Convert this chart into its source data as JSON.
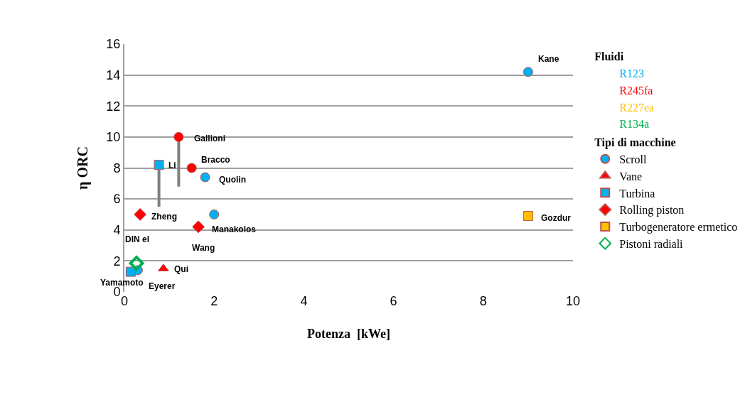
{
  "chart_data": {
    "type": "scatter",
    "xlabel": "Potenza  [kWe]",
    "ylabel": "η ORC",
    "legend_title": "Fluidi",
    "xlim": [
      0,
      10
    ],
    "xticks": [
      0,
      2,
      4,
      6,
      8,
      10
    ],
    "ylim": [
      0,
      16
    ],
    "yticks": [
      0,
      2,
      4,
      6,
      8,
      10,
      12,
      14,
      16
    ],
    "grid": "y",
    "legend": "right",
    "series": [
      {
        "name": "R123",
        "color": "#00b0f0"
      },
      {
        "name": "R245fa",
        "color": "#ff0000"
      },
      {
        "name": "R227ea",
        "color": "#ffc000"
      },
      {
        "name": "R134a",
        "color": "#00b050"
      },
      {
        "name": "Scroll",
        "marker": "circle",
        "x": [
          9.0,
          1.21,
          1.5,
          1.8,
          2.0,
          0.3
        ],
        "values": [
          14.2,
          10.0,
          8.0,
          7.4,
          5.0,
          1.4
        ],
        "colors": [
          "#00b0f0",
          "#ff0000",
          "#ff0000",
          "#00b0f0",
          "#00b0f0",
          "#00b0f0"
        ],
        "errors": [
          null,
          [
            6.8,
            10.0
          ],
          null,
          null,
          null,
          null
        ]
      },
      {
        "name": "Vane",
        "marker": "triangle",
        "x": [
          0.87
        ],
        "values": [
          1.5
        ],
        "colors": [
          "#ff0000"
        ]
      },
      {
        "name": "Turbina",
        "marker": "square",
        "x": [
          0.77,
          0.14
        ],
        "values": [
          8.2,
          1.3
        ],
        "colors": [
          "#00b0f0",
          "#00b0f0"
        ],
        "errors": [
          [
            5.5,
            8.2
          ],
          null
        ]
      },
      {
        "name": "Rolling piston",
        "marker": "diamond",
        "x": [
          0.35,
          1.65
        ],
        "values": [
          5.0,
          4.2
        ],
        "colors": [
          "#ff0000",
          "#ff0000"
        ]
      },
      {
        "name": "Turbogeneratore ermetico",
        "marker": "square",
        "x": [
          9.0
        ],
        "values": [
          4.9
        ],
        "colors": [
          "#ffc000"
        ]
      },
      {
        "name": "Pistoni radiali",
        "marker": "diamond-open",
        "x": [
          0.27
        ],
        "values": [
          1.85
        ],
        "colors": [
          "#00b050"
        ]
      }
    ],
    "annotations": [
      "Tipi di macchine",
      {
        "text": "Kane",
        "x": 9.0,
        "y": 14.2
      },
      {
        "text": "Gallioni",
        "x": 1.21,
        "y": 10.0
      },
      {
        "text": "Bracco",
        "x": 1.5,
        "y": 8.0
      },
      {
        "text": "Quolin",
        "x": 1.8,
        "y": 7.4
      },
      {
        "text": "Li",
        "x": 0.77,
        "y": 8.2
      },
      {
        "text": "Zheng",
        "x": 0.35,
        "y": 5.0
      },
      {
        "text": "Manakolos",
        "x": 2.0,
        "y": 5.0
      },
      {
        "text": "Wang",
        "x": 1.65,
        "y": 4.2
      },
      {
        "text": "DIN el",
        "x": 0.27,
        "y": 1.85
      },
      {
        "text": "Qui",
        "x": 0.87,
        "y": 1.5
      },
      {
        "text": "Yamamoto",
        "x": 0.14,
        "y": 1.3
      },
      {
        "text": "Eyerer",
        "x": 0.3,
        "y": 1.4
      },
      {
        "text": "Gozdur",
        "x": 9.0,
        "y": 4.9
      }
    ]
  }
}
